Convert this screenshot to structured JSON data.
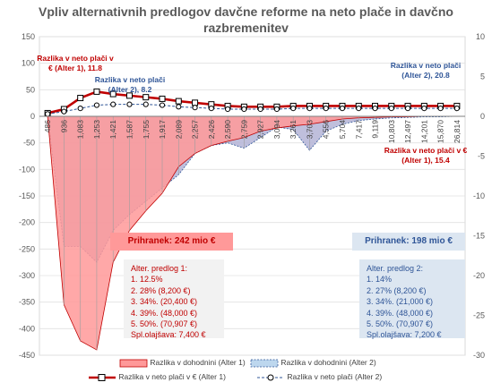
{
  "title_line1": "Vpliv alternativnih predlogov davčne reforme na neto plače in davčno",
  "title_line2": "razbremenitev",
  "chart_data": {
    "type": "area+line",
    "categories": [
      "486",
      "936",
      "1,083",
      "1,253",
      "1,421",
      "1,587",
      "1,755",
      "1,917",
      "2,089",
      "2,257",
      "2,426",
      "2,590",
      "2,759",
      "2,927",
      "3,094",
      "3,261",
      "3,703",
      "4,556",
      "5,704",
      "7,417",
      "9,119",
      "10,803",
      "12,497",
      "14,201",
      "15,870",
      "26,814"
    ],
    "y_left": {
      "min": -450,
      "max": 150,
      "ticks": [
        150,
        100,
        50,
        0,
        -50,
        -100,
        -150,
        -200,
        -250,
        -300,
        -350,
        -400,
        -450
      ]
    },
    "y_right": {
      "min": -30,
      "max": 10,
      "ticks": [
        10,
        5,
        0,
        -5,
        -10,
        -15,
        -20,
        -25,
        -30
      ]
    },
    "series": [
      {
        "name": "Razlika v dohodnini (Alter 1)",
        "axis": "left",
        "color": "#FF9999",
        "values": [
          0,
          -355,
          -423,
          -440,
          -275,
          -215,
          -178,
          -145,
          -95,
          -70,
          -55,
          -47,
          -40,
          -28,
          -22,
          -18,
          -15,
          -10,
          -5,
          -3,
          -2,
          -1,
          -1,
          0,
          0,
          0
        ]
      },
      {
        "name": "Razlika v dohodnini (Alter 2)",
        "axis": "left",
        "color": "#8EA9DB",
        "values": [
          0,
          -245,
          -245,
          -275,
          -215,
          -185,
          -160,
          -135,
          -110,
          -70,
          -55,
          -50,
          -60,
          -40,
          -20,
          -25,
          -64,
          -28,
          -15,
          -8,
          -5,
          -3,
          -2,
          -1,
          -1,
          0
        ]
      },
      {
        "name": "Razlika v neto plači v € (Alter 1)",
        "axis": "right",
        "color": "#C00000",
        "values": [
          0.4,
          0.9,
          2.3,
          3.1,
          2.8,
          2.6,
          2.4,
          2.2,
          1.9,
          1.7,
          1.5,
          1.3,
          1.2,
          1.2,
          1.2,
          1.3,
          1.3,
          1.3,
          1.3,
          1.3,
          1.3,
          1.3,
          1.3,
          1.3,
          1.3,
          1.3
        ]
      },
      {
        "name": "Razlika v neto plači (Alter 2)",
        "axis": "right",
        "color": "#2F5597",
        "values": [
          0.3,
          0.6,
          1.0,
          1.4,
          1.5,
          1.5,
          1.5,
          1.4,
          1.2,
          1.1,
          1.0,
          0.9,
          0.9,
          0.9,
          0.9,
          1.0,
          1.0,
          1.0,
          1.0,
          1.0,
          1.0,
          1.0,
          1.0,
          1.0,
          1.0,
          1.0
        ]
      }
    ]
  },
  "annotations": {
    "a1_left": "Razlika v neto plači v € (Alter 1), 11.8",
    "a2_left": "Razlika v neto plači (Alter 2), 8.2",
    "a2_right": "Razlika v neto plači (Alter 2), 20.8",
    "a1_right": "Razlika v neto plači v € (Alter 1), 15.4"
  },
  "savings": {
    "alter1": "Prihranek: 242 mio €",
    "alter2": "Prihranek: 198 mio €",
    "alter1_color": "#FF9999",
    "alter2_color": "#DCE6F1"
  },
  "box1": {
    "title": "Alter. predlog 1:",
    "lines": [
      "1. 12.5%",
      "2. 28%    (8,200 €)",
      "3. 34%.  (20,400 €)",
      "4. 39%.  (48,000 €)",
      "5. 50%.  (70,907 €)",
      "Spl.olajšava: 7,400 €"
    ]
  },
  "box2": {
    "title": "Alter. predlog 2:",
    "lines": [
      "1. 14%",
      "2. 27%     (8,200 €)",
      "3. 34%.   (21,000 €)",
      "4. 39%.   (48,000 €)",
      "5. 50%.   (70,907 €)",
      "Spl.olajšava: 7,200 €"
    ]
  },
  "legend": {
    "alter1_area": "Razlika v dohodnini (Alter 1)",
    "alter2_area": "Razlika v dohodnini (Alter 2)",
    "alter1_line": "Razlika v neto plači v € (Alter 1)",
    "alter2_line": "Razlika v neto plači (Alter 2)"
  }
}
